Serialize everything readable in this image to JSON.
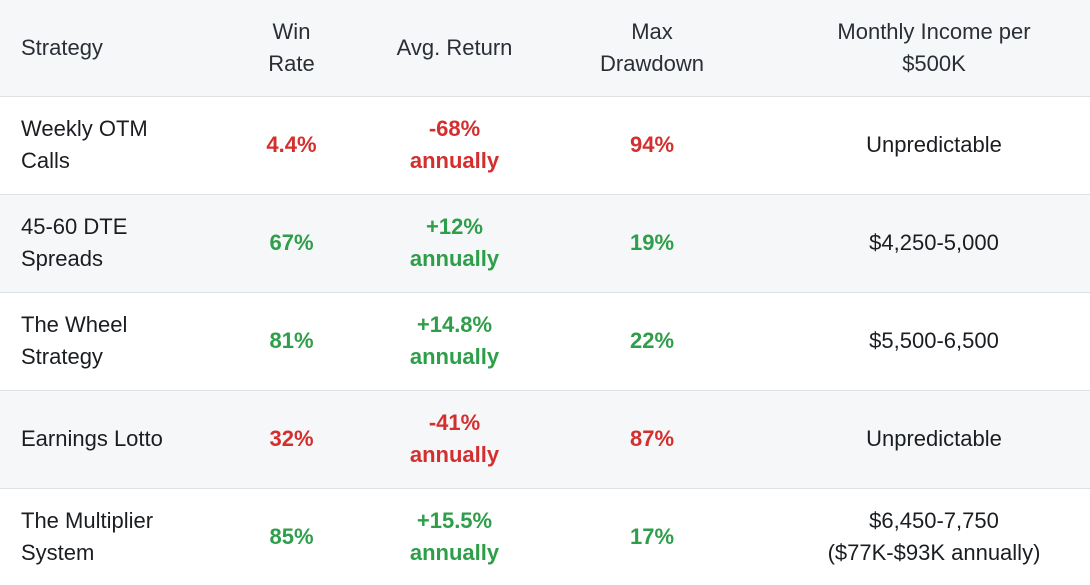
{
  "colors": {
    "negative": "#d32f2f",
    "positive": "#2e9e4a",
    "header_bg": "#f6f7f8",
    "row_alt_bg": "#f6f7f8",
    "border": "#dfe2e5",
    "text": "#1a1d21"
  },
  "table": {
    "headers": {
      "strategy": "Strategy",
      "win_rate": [
        "Win",
        "Rate"
      ],
      "avg_return": "Avg. Return",
      "max_drawdown": [
        "Max",
        "Drawdown"
      ],
      "monthly_income": [
        "Monthly Income per",
        "$500K"
      ]
    },
    "rows": [
      {
        "strategy": [
          "Weekly OTM",
          "Calls"
        ],
        "win_rate": "4.4%",
        "avg_return": [
          "-68%",
          "annually"
        ],
        "max_drawdown": "94%",
        "monthly_income": [
          "Unpredictable"
        ],
        "tone": "negative"
      },
      {
        "strategy": [
          "45-60 DTE",
          "Spreads"
        ],
        "win_rate": "67%",
        "avg_return": [
          "+12%",
          "annually"
        ],
        "max_drawdown": "19%",
        "monthly_income": [
          "$4,250-5,000"
        ],
        "tone": "positive"
      },
      {
        "strategy": [
          "The Wheel",
          "Strategy"
        ],
        "win_rate": "81%",
        "avg_return": [
          "+14.8%",
          "annually"
        ],
        "max_drawdown": "22%",
        "monthly_income": [
          "$5,500-6,500"
        ],
        "tone": "positive"
      },
      {
        "strategy": [
          "Earnings Lotto"
        ],
        "win_rate": "32%",
        "avg_return": [
          "-41%",
          "annually"
        ],
        "max_drawdown": "87%",
        "monthly_income": [
          "Unpredictable"
        ],
        "tone": "negative"
      },
      {
        "strategy": [
          "The Multiplier",
          "System"
        ],
        "win_rate": "85%",
        "avg_return": [
          "+15.5%",
          "annually"
        ],
        "max_drawdown": "17%",
        "monthly_income": [
          "$6,450-7,750",
          "($77K-$93K annually)"
        ],
        "tone": "positive"
      }
    ]
  }
}
